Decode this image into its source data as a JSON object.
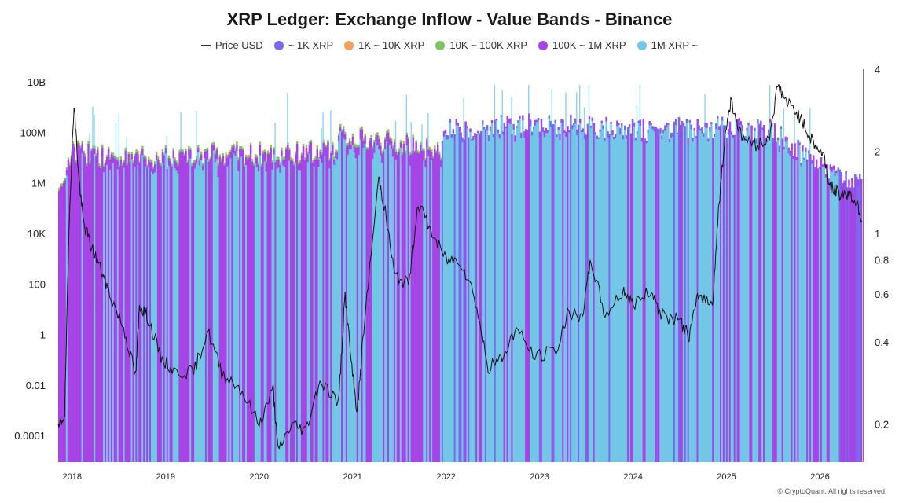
{
  "chart_data": {
    "type": "bar",
    "title": "XRP Ledger: Exchange Inflow - Value Bands - Binance",
    "legend": [
      {
        "name": "Price USD",
        "color": "#333333",
        "marker": "line"
      },
      {
        "name": "~ 1K XRP",
        "color": "#7b68ee",
        "marker": "dot"
      },
      {
        "name": "1K ~ 10K XRP",
        "color": "#f0a060",
        "marker": "dot"
      },
      {
        "name": "10K ~ 100K XRP",
        "color": "#7dc463",
        "marker": "dot"
      },
      {
        "name": "100K ~ 1M XRP",
        "color": "#a644e6",
        "marker": "dot"
      },
      {
        "name": "1M XRP ~",
        "color": "#74c6e6",
        "marker": "dot"
      }
    ],
    "legend_placement": "top-center",
    "x_ticks": [
      "2018",
      "2019",
      "2020",
      "2021",
      "2022",
      "2023",
      "2024",
      "2025",
      "2026"
    ],
    "x_range": [
      2017.85,
      2026.45
    ],
    "y_left": {
      "scale": "log",
      "ticks": [
        "10B",
        "100M",
        "1M",
        "10K",
        "100",
        "1",
        "0.01",
        "0.0001"
      ],
      "tick_values": [
        10000000000,
        100000000,
        1000000,
        10000,
        100,
        1,
        0.01,
        0.0001
      ]
    },
    "y_right": {
      "scale": "log",
      "ticks": [
        "4",
        "2",
        "1",
        "0.8",
        "0.6",
        "0.4",
        "0.2"
      ],
      "tick_values": [
        4,
        2,
        1,
        0.8,
        0.6,
        0.4,
        0.2
      ]
    },
    "inflow_top_envelope": [
      {
        "x": 2017.85,
        "total": 500000,
        "purple_share_log": 0.92
      },
      {
        "x": 2018.0,
        "total": 20000000,
        "purple_share_log": 0.9
      },
      {
        "x": 2018.5,
        "total": 10000000,
        "purple_share_log": 0.88
      },
      {
        "x": 2019.0,
        "total": 12000000,
        "purple_share_log": 0.86
      },
      {
        "x": 2019.5,
        "total": 15000000,
        "purple_share_log": 0.85
      },
      {
        "x": 2020.0,
        "total": 15000000,
        "purple_share_log": 0.84
      },
      {
        "x": 2020.8,
        "total": 20000000,
        "purple_share_log": 0.84
      },
      {
        "x": 2020.85,
        "total": 80000000,
        "purple_share_log": 0.88
      },
      {
        "x": 2021.5,
        "total": 40000000,
        "purple_share_log": 0.9
      },
      {
        "x": 2021.95,
        "total": 20000000,
        "purple_share_log": 0.9
      },
      {
        "x": 2022.0,
        "total": 150000000,
        "purple_share_log": 0.97
      },
      {
        "x": 2023.0,
        "total": 300000000,
        "purple_share_log": 0.98
      },
      {
        "x": 2024.0,
        "total": 150000000,
        "purple_share_log": 0.98
      },
      {
        "x": 2024.9,
        "total": 200000000,
        "purple_share_log": 0.98
      },
      {
        "x": 2025.5,
        "total": 150000000,
        "purple_share_log": 0.97
      },
      {
        "x": 2026.0,
        "total": 5000000,
        "purple_share_log": 0.97
      },
      {
        "x": 2026.4,
        "total": 1000000,
        "purple_share_log": 0.97
      }
    ],
    "price": [
      {
        "x": 2017.85,
        "y": 0.19
      },
      {
        "x": 2017.92,
        "y": 0.22
      },
      {
        "x": 2017.97,
        "y": 1.2
      },
      {
        "x": 2018.02,
        "y": 3.0
      },
      {
        "x": 2018.07,
        "y": 1.6
      },
      {
        "x": 2018.12,
        "y": 1.1
      },
      {
        "x": 2018.2,
        "y": 0.9
      },
      {
        "x": 2018.3,
        "y": 0.75
      },
      {
        "x": 2018.4,
        "y": 0.6
      },
      {
        "x": 2018.55,
        "y": 0.45
      },
      {
        "x": 2018.68,
        "y": 0.3
      },
      {
        "x": 2018.72,
        "y": 0.55
      },
      {
        "x": 2018.8,
        "y": 0.5
      },
      {
        "x": 2018.95,
        "y": 0.35
      },
      {
        "x": 2019.1,
        "y": 0.31
      },
      {
        "x": 2019.3,
        "y": 0.31
      },
      {
        "x": 2019.45,
        "y": 0.44
      },
      {
        "x": 2019.6,
        "y": 0.31
      },
      {
        "x": 2019.8,
        "y": 0.27
      },
      {
        "x": 2020.0,
        "y": 0.2
      },
      {
        "x": 2020.15,
        "y": 0.27
      },
      {
        "x": 2020.2,
        "y": 0.16
      },
      {
        "x": 2020.35,
        "y": 0.2
      },
      {
        "x": 2020.5,
        "y": 0.19
      },
      {
        "x": 2020.65,
        "y": 0.29
      },
      {
        "x": 2020.85,
        "y": 0.24
      },
      {
        "x": 2020.92,
        "y": 0.6
      },
      {
        "x": 2021.0,
        "y": 0.3
      },
      {
        "x": 2021.05,
        "y": 0.22
      },
      {
        "x": 2021.12,
        "y": 0.45
      },
      {
        "x": 2021.28,
        "y": 1.6
      },
      {
        "x": 2021.35,
        "y": 1.2
      },
      {
        "x": 2021.45,
        "y": 0.7
      },
      {
        "x": 2021.6,
        "y": 0.65
      },
      {
        "x": 2021.7,
        "y": 1.3
      },
      {
        "x": 2021.85,
        "y": 1.0
      },
      {
        "x": 2022.0,
        "y": 0.8
      },
      {
        "x": 2022.15,
        "y": 0.8
      },
      {
        "x": 2022.3,
        "y": 0.6
      },
      {
        "x": 2022.45,
        "y": 0.32
      },
      {
        "x": 2022.6,
        "y": 0.35
      },
      {
        "x": 2022.75,
        "y": 0.45
      },
      {
        "x": 2022.95,
        "y": 0.35
      },
      {
        "x": 2023.2,
        "y": 0.38
      },
      {
        "x": 2023.3,
        "y": 0.52
      },
      {
        "x": 2023.45,
        "y": 0.48
      },
      {
        "x": 2023.55,
        "y": 0.8
      },
      {
        "x": 2023.7,
        "y": 0.5
      },
      {
        "x": 2023.9,
        "y": 0.62
      },
      {
        "x": 2024.0,
        "y": 0.55
      },
      {
        "x": 2024.2,
        "y": 0.62
      },
      {
        "x": 2024.3,
        "y": 0.5
      },
      {
        "x": 2024.5,
        "y": 0.48
      },
      {
        "x": 2024.6,
        "y": 0.42
      },
      {
        "x": 2024.7,
        "y": 0.6
      },
      {
        "x": 2024.85,
        "y": 0.55
      },
      {
        "x": 2024.92,
        "y": 1.3
      },
      {
        "x": 2025.0,
        "y": 2.5
      },
      {
        "x": 2025.05,
        "y": 3.1
      },
      {
        "x": 2025.15,
        "y": 2.3
      },
      {
        "x": 2025.3,
        "y": 2.1
      },
      {
        "x": 2025.45,
        "y": 2.2
      },
      {
        "x": 2025.55,
        "y": 3.5
      },
      {
        "x": 2025.65,
        "y": 3.0
      },
      {
        "x": 2025.75,
        "y": 2.8
      },
      {
        "x": 2025.85,
        "y": 2.4
      },
      {
        "x": 2025.95,
        "y": 2.1
      },
      {
        "x": 2026.05,
        "y": 1.9
      },
      {
        "x": 2026.1,
        "y": 1.5
      },
      {
        "x": 2026.2,
        "y": 1.4
      },
      {
        "x": 2026.3,
        "y": 1.4
      },
      {
        "x": 2026.4,
        "y": 1.3
      },
      {
        "x": 2026.45,
        "y": 1.1
      }
    ],
    "grid": false
  },
  "footer": {
    "credit": "© CryptoQuant. All rights reserved"
  }
}
